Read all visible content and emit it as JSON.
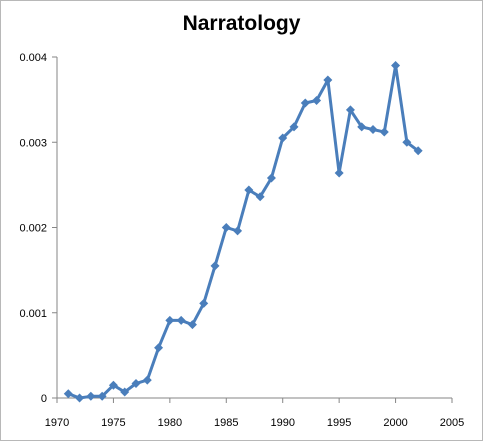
{
  "chart_data": {
    "type": "line",
    "title": "Narratology",
    "xlabel": "",
    "ylabel": "",
    "xlim": [
      1970,
      2005
    ],
    "ylim": [
      0,
      0.004
    ],
    "x_ticks": [
      "1970",
      "1975",
      "1980",
      "1985",
      "1990",
      "1995",
      "2000",
      "2005"
    ],
    "y_ticks": [
      "0",
      "0.001",
      "0.002",
      "0.003",
      "0.004"
    ],
    "grid": false,
    "legend": "none",
    "series": [
      {
        "color": "#4a7ebb",
        "marker": "diamond",
        "x": [
          1971,
          1972,
          1973,
          1974,
          1975,
          1976,
          1977,
          1978,
          1979,
          1980,
          1981,
          1982,
          1983,
          1984,
          1985,
          1986,
          1987,
          1988,
          1989,
          1990,
          1991,
          1992,
          1993,
          1994,
          1995,
          1996,
          1997,
          1998,
          1999,
          2000,
          2001,
          2002
        ],
        "y": [
          5e-05,
          0.0,
          2e-05,
          2e-05,
          0.00015,
          7e-05,
          0.00017,
          0.00021,
          0.00059,
          0.00091,
          0.00091,
          0.00086,
          0.00111,
          0.00155,
          0.002,
          0.00196,
          0.00244,
          0.00236,
          0.00258,
          0.00305,
          0.00318,
          0.00346,
          0.00349,
          0.00373,
          0.00264,
          0.00338,
          0.00318,
          0.00315,
          0.00312,
          0.0039,
          0.003,
          0.0029
        ]
      }
    ]
  }
}
